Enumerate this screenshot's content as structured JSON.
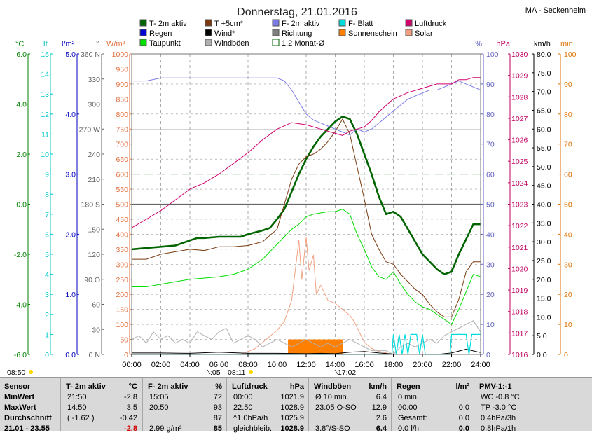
{
  "header": {
    "title": "Donnerstag, 21.01.2016",
    "station": "MA - Seckenheim"
  },
  "legend": [
    {
      "label": "T- 2m aktiv",
      "color": "#006400",
      "style": "solid"
    },
    {
      "label": "T +5cm*",
      "color": "#7a3b10",
      "style": "solid"
    },
    {
      "label": "F- 2m aktiv",
      "color": "#7b7be8",
      "style": "solid"
    },
    {
      "label": "F- Blatt",
      "color": "#00dcdc",
      "style": "solid"
    },
    {
      "label": "Luftdruck",
      "color": "#d0006e",
      "style": "solid"
    },
    {
      "label": "Regen",
      "color": "#0000d0",
      "style": "solid"
    },
    {
      "label": "Wind*",
      "color": "#000000",
      "style": "solid"
    },
    {
      "label": "Richtung",
      "color": "#808080",
      "style": "solid"
    },
    {
      "label": "Sonnenschein",
      "color": "#ff7f00",
      "style": "solid"
    },
    {
      "label": "Solar",
      "color": "#f0a080",
      "style": "solid"
    },
    {
      "label": "Taupunkt",
      "color": "#00e000",
      "style": "solid"
    },
    {
      "label": "Windböen",
      "color": "#b0b0b0",
      "style": "solid"
    },
    {
      "label": "1.2 Monat-Ø",
      "color": "#006400",
      "style": "outline"
    }
  ],
  "axis_units": {
    "temp": "°C",
    "lf": "lf",
    "rain": "l/m²",
    "dir": "°",
    "solar": "W/m²",
    "hum": "%",
    "press": "hPa",
    "wind": "km/h",
    "minutes": "min"
  },
  "chart_data": {
    "type": "line",
    "x_range_hours": [
      0,
      24
    ],
    "x_ticks": [
      "00:00",
      "02:00",
      "04:00",
      "06:00",
      "08:00",
      "10:00",
      "12:00",
      "14:00",
      "16:00",
      "18:00",
      "20:00",
      "22:00",
      "24:00"
    ],
    "axes": {
      "temp": {
        "range": [
          -6,
          6
        ],
        "ticks": [
          "6.0",
          "4.0",
          "2.0",
          "0.0",
          "-2.0",
          "-4.0",
          "-6.0"
        ],
        "color": "#008000"
      },
      "lf": {
        "range": [
          0,
          15
        ],
        "ticks": [
          "15",
          "14",
          "13",
          "12",
          "11",
          "10",
          "9",
          "8",
          "7",
          "6",
          "5",
          "4",
          "3",
          "2",
          "1",
          "0"
        ],
        "color": "#00c8c8"
      },
      "rain": {
        "range": [
          0,
          5
        ],
        "ticks": [
          "5.0",
          "4.0",
          "3.0",
          "2.0",
          "1.0",
          "0.0"
        ],
        "color": "#0000c0"
      },
      "dir": {
        "range": [
          0,
          360
        ],
        "ticks": [
          "360 N",
          "330",
          "300",
          "270 W",
          "240",
          "210",
          "180 S",
          "150",
          "120",
          "90 O",
          "60",
          "30",
          "0 N"
        ],
        "color": "#606060"
      },
      "solar": {
        "range": [
          0,
          1000
        ],
        "ticks": [
          "1000",
          "950",
          "900",
          "850",
          "800",
          "750",
          "700",
          "650",
          "600",
          "550",
          "500",
          "450",
          "400",
          "350",
          "300",
          "250",
          "200",
          "150",
          "100",
          "50",
          "0"
        ],
        "color": "#e07040"
      },
      "hum": {
        "range": [
          0,
          100
        ],
        "ticks": [
          "100",
          "90",
          "80",
          "70",
          "60",
          "50",
          "40",
          "30",
          "20",
          "10",
          "0"
        ],
        "color": "#6060c0"
      },
      "press": {
        "range": [
          1016,
          1030
        ],
        "ticks": [
          "1030",
          "1029",
          "1028",
          "1027",
          "1026",
          "1025",
          "1024",
          "1023",
          "1022",
          "1021",
          "1020",
          "1019",
          "1018",
          "1017",
          "1016"
        ],
        "color": "#c00060"
      },
      "wind": {
        "range": [
          0,
          80
        ],
        "ticks": [
          "80.0",
          "75.0",
          "70.0",
          "65.0",
          "60.0",
          "55.0",
          "50.0",
          "45.0",
          "40.0",
          "35.0",
          "30.0",
          "25.0",
          "20.0",
          "15.0",
          "10.0",
          "5.0",
          "0.0"
        ],
        "color": "#000000"
      },
      "minutes": {
        "range": [
          0,
          100
        ],
        "ticks": [
          "100",
          "90",
          "80",
          "70",
          "60",
          "50",
          "40",
          "30",
          "20",
          "10",
          "0"
        ],
        "color": "#e07000"
      }
    },
    "series": [
      {
        "name": "T- 2m aktiv",
        "axis": "temp",
        "color": "#006400",
        "width": 2.6,
        "x": [
          0,
          1,
          2,
          3,
          4,
          4.5,
          5,
          6,
          7,
          7.5,
          8,
          9,
          9.5,
          10,
          10.5,
          11,
          11.5,
          12,
          12.5,
          13,
          13.5,
          14,
          14.5,
          15,
          15.5,
          16,
          16.5,
          17,
          17.5,
          18,
          18.5,
          19,
          19.5,
          20,
          20.5,
          21,
          21.5,
          22,
          22.5,
          23,
          23.5,
          24
        ],
        "y": [
          -1.8,
          -1.75,
          -1.7,
          -1.65,
          -1.45,
          -1.35,
          -1.35,
          -1.3,
          -1.3,
          -1.3,
          -1.2,
          -1.05,
          -0.95,
          -0.6,
          -0.2,
          0.5,
          1.2,
          1.8,
          2.3,
          2.7,
          3.0,
          3.3,
          3.5,
          3.4,
          2.8,
          2.0,
          1.2,
          0.3,
          -0.4,
          -0.3,
          -0.5,
          -1.0,
          -1.5,
          -2.0,
          -2.3,
          -2.6,
          -2.8,
          -2.7,
          -2.0,
          -1.4,
          -0.8,
          -0.8
        ]
      },
      {
        "name": "T +5cm*",
        "axis": "temp",
        "color": "#7a3b10",
        "width": 1,
        "x": [
          0,
          1,
          2,
          3,
          4,
          5,
          6,
          7,
          8,
          9,
          10,
          10.5,
          11,
          11.5,
          12,
          12.5,
          13,
          13.5,
          14,
          14.5,
          15,
          15.5,
          16,
          16.5,
          17,
          17.5,
          18,
          18.5,
          19,
          19.5,
          20,
          20.5,
          21,
          21.5,
          22,
          22.5,
          23,
          23.5,
          24
        ],
        "y": [
          -2.2,
          -2.2,
          -2.0,
          -1.9,
          -1.8,
          -1.85,
          -1.7,
          -1.7,
          -1.65,
          -1.5,
          -1.0,
          0.0,
          1.0,
          1.6,
          1.9,
          2.0,
          2.2,
          2.5,
          2.9,
          3.4,
          2.8,
          1.5,
          0.2,
          -1.2,
          -1.8,
          -2.3,
          -2.4,
          -2.8,
          -3.1,
          -3.4,
          -3.6,
          -4.0,
          -4.3,
          -4.5,
          -4.5,
          -3.8,
          -2.7,
          -2.3,
          -2.3
        ]
      },
      {
        "name": "Taupunkt",
        "axis": "temp",
        "color": "#00dd00",
        "width": 1,
        "x": [
          0,
          1,
          2,
          3,
          4,
          5,
          6,
          7,
          8,
          9,
          10,
          10.5,
          11,
          11.5,
          12,
          12.5,
          13,
          13.5,
          14,
          14.5,
          15,
          15.5,
          16,
          16.5,
          17,
          17.5,
          18,
          18.5,
          19,
          19.5,
          20,
          20.5,
          21,
          21.5,
          22,
          22.5,
          23,
          23.5,
          24
        ],
        "y": [
          -3.3,
          -3.3,
          -3.2,
          -3.1,
          -3.0,
          -2.95,
          -2.9,
          -2.8,
          -2.6,
          -2.2,
          -1.6,
          -1.3,
          -1.0,
          -0.8,
          -0.5,
          -0.4,
          -0.35,
          -0.3,
          -0.3,
          -0.2,
          -0.4,
          -1.2,
          -1.8,
          -2.5,
          -2.9,
          -3.0,
          -2.7,
          -3.2,
          -3.6,
          -3.9,
          -4.1,
          -4.2,
          -4.4,
          -4.6,
          -4.8,
          -4.2,
          -3.5,
          -2.8,
          -2.9
        ]
      },
      {
        "name": "F- 2m aktiv",
        "axis": "hum",
        "color": "#7b7be8",
        "width": 1,
        "x": [
          0,
          1,
          2,
          3,
          4,
          5,
          6,
          7,
          8,
          9,
          10,
          10.5,
          11,
          11.5,
          12,
          12.5,
          13,
          13.5,
          14,
          14.5,
          15,
          15.5,
          16,
          16.5,
          17,
          17.5,
          18,
          18.5,
          19,
          19.5,
          20,
          20.5,
          21,
          21.5,
          22,
          22.5,
          23,
          23.5,
          24
        ],
        "y": [
          91,
          91,
          92,
          92,
          92,
          92,
          92,
          92,
          92,
          92,
          92,
          91,
          88,
          84,
          80,
          78,
          77,
          76,
          75,
          74,
          73,
          75,
          74,
          75,
          77,
          79,
          81,
          83,
          85,
          86,
          87,
          88,
          88,
          89,
          90,
          91,
          90,
          89,
          88
        ]
      },
      {
        "name": "Luftdruck",
        "axis": "press",
        "color": "#d0006e",
        "width": 1,
        "x": [
          0,
          1,
          2,
          3,
          4,
          5,
          6,
          7,
          8,
          9,
          10,
          11,
          12,
          13,
          14,
          14.5,
          15,
          15.5,
          16,
          16.5,
          17,
          17.5,
          18,
          19,
          20,
          21,
          22,
          22.5,
          23,
          23.5,
          24
        ],
        "y": [
          1021.9,
          1022.3,
          1022.7,
          1023.2,
          1023.7,
          1024.0,
          1024.4,
          1024.9,
          1025.4,
          1026.0,
          1026.5,
          1026.8,
          1026.7,
          1026.5,
          1026.3,
          1026.2,
          1026.4,
          1026.5,
          1026.6,
          1026.9,
          1027.3,
          1027.6,
          1027.9,
          1028.2,
          1028.4,
          1028.6,
          1028.6,
          1028.8,
          1028.8,
          1028.9,
          1028.9
        ]
      },
      {
        "name": "Solar",
        "axis": "solar",
        "color": "#f0a080",
        "width": 1,
        "x": [
          0,
          7.5,
          8,
          8.5,
          9,
          9.5,
          10,
          10.5,
          11,
          11.3,
          11.5,
          11.7,
          12,
          12.2,
          12.5,
          12.7,
          13,
          13.5,
          14,
          14.5,
          15,
          15.3,
          15.6,
          16,
          16.5,
          17,
          17.5,
          18
        ],
        "y": [
          0,
          0,
          10,
          20,
          40,
          60,
          80,
          110,
          180,
          300,
          380,
          250,
          390,
          280,
          330,
          200,
          230,
          180,
          170,
          150,
          130,
          110,
          80,
          40,
          20,
          10,
          5,
          0
        ]
      },
      {
        "name": "Windböen",
        "axis": "wind",
        "color": "#b0b0b0",
        "width": 1,
        "x": [
          0,
          0.5,
          1,
          1.5,
          2,
          2.5,
          3,
          3.5,
          4,
          4.5,
          5,
          5.5,
          6,
          6.5,
          7,
          7.5,
          8,
          8.5,
          9,
          9.5,
          10,
          10.5,
          11,
          11.5,
          12,
          12.5,
          13,
          13.5,
          14,
          14.5,
          15,
          15.5,
          16,
          16.5,
          17,
          17.5,
          18,
          18.5,
          19,
          19.5,
          20,
          20.5,
          21,
          21.5,
          22,
          22.5,
          23,
          23.5,
          24
        ],
        "y": [
          4,
          5,
          3,
          6,
          4,
          5,
          3,
          4,
          3,
          6,
          5,
          4,
          6,
          7,
          3,
          4,
          5,
          4,
          2,
          3,
          4,
          3,
          2,
          3,
          4,
          3,
          2,
          3,
          2,
          3,
          4,
          3,
          2,
          1,
          1,
          1,
          0,
          2,
          3,
          2,
          3,
          4,
          3,
          5,
          6,
          7,
          8,
          9,
          6
        ]
      },
      {
        "name": "Wind*",
        "axis": "wind",
        "color": "#000000",
        "width": 1,
        "x": [
          0,
          2,
          4,
          6,
          8,
          10,
          12,
          13,
          14,
          15,
          16,
          17,
          18,
          19,
          20,
          21,
          22,
          23,
          24
        ],
        "y": [
          0.4,
          0.4,
          0.3,
          0.6,
          0.3,
          0.3,
          0.2,
          0.3,
          0.2,
          0.6,
          0.8,
          0.4,
          0.1,
          0.0,
          0.0,
          0.0,
          0.4,
          1.4,
          0.5
        ]
      },
      {
        "name": "F- Blatt",
        "axis": "lf",
        "color": "#00dcdc",
        "width": 1.2,
        "x": [
          0,
          17.9,
          18.0,
          18.2,
          18.4,
          18.6,
          18.8,
          19.0,
          19.2,
          19.4,
          19.6,
          19.8,
          20.0,
          20.2,
          21.0,
          21.9,
          22.0,
          22.3,
          22.6,
          23.0,
          23.2,
          23.4,
          24
        ],
        "y": [
          0,
          0,
          1,
          0,
          1,
          0,
          1,
          0,
          1,
          1,
          1,
          0,
          1,
          0,
          0,
          0,
          1,
          1,
          1,
          1,
          0,
          1,
          1
        ]
      },
      {
        "name": "1.2 Monat-Ø",
        "axis": "temp",
        "color": "#006400",
        "width": 1,
        "x": [
          0,
          24
        ],
        "y": [
          1.2,
          1.2
        ]
      }
    ],
    "sunshine_bar": {
      "name": "Sonnenschein",
      "axis": "minutes",
      "color": "#ff7f00",
      "x_start": 10.75,
      "x_end": 14.55,
      "value": 5
    },
    "rain_bar": {
      "name": "Regen",
      "axis": "rain",
      "values_zero": true
    }
  },
  "time_markers": {
    "sunrise": "08:50",
    "sunset": "17:02",
    "mid_low": "08:11",
    "low": ":05"
  },
  "table": {
    "row_labels": [
      "Sensor",
      "MinWert",
      "MaxWert",
      "Durchschnitt",
      "21.01 - 23.55"
    ],
    "cols": [
      {
        "title": "T- 2m aktiv",
        "unit": "°C",
        "rows": [
          [
            "21:50",
            "-2.8"
          ],
          [
            "14:50",
            "3.5"
          ],
          [
            "( -1.62 )",
            "-0.42"
          ],
          [
            "",
            "-2.8"
          ]
        ]
      },
      {
        "title": "F- 2m aktiv",
        "unit": "%",
        "rows": [
          [
            "15:05",
            "72"
          ],
          [
            "20:50",
            "93"
          ],
          [
            "",
            "87"
          ],
          [
            "2.99 g/m³",
            "85"
          ]
        ]
      },
      {
        "title": "Luftdruck",
        "unit": "hPa",
        "rows": [
          [
            "00:00",
            "1021.9"
          ],
          [
            "22:50",
            "1028.9"
          ],
          [
            "^1.0hPa/h",
            "1025.9"
          ],
          [
            "gleichbleib.",
            "1028.9"
          ]
        ]
      },
      {
        "title": "Windböen",
        "unit": "km/h",
        "rows": [
          [
            "Ø 10 min.",
            "6.4"
          ],
          [
            "23:05   O-SO",
            "12.9"
          ],
          [
            "",
            "2.6"
          ],
          [
            "3.8°/S-SO",
            "6.4"
          ]
        ]
      },
      {
        "title": "Regen",
        "unit": "l/m²",
        "rows": [
          [
            "0 min.",
            ""
          ],
          [
            "00:00",
            "0.0"
          ],
          [
            "Gesamt:",
            "0.0"
          ],
          [
            "0.0 l/h",
            "0.0"
          ]
        ]
      },
      {
        "title": "PMV-1:-1",
        "unit": "",
        "rows": [
          [
            "WC -0.8 °C",
            ""
          ],
          [
            "TP -3.0 °C",
            ""
          ],
          [
            "0.4hPa/3h",
            ""
          ],
          [
            "0.8hPa/1h",
            ""
          ]
        ]
      }
    ]
  }
}
